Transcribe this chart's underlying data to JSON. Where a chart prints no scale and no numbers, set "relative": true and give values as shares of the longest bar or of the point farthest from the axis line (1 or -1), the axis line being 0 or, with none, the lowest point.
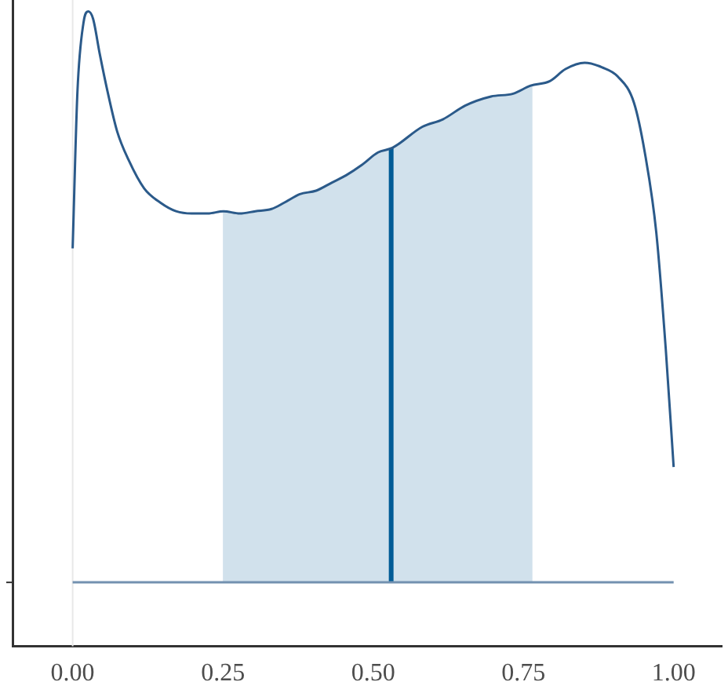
{
  "chart_data": {
    "type": "line",
    "relative": true,
    "x": [
      0.0,
      0.008,
      0.018,
      0.026,
      0.034,
      0.045,
      0.058,
      0.074,
      0.093,
      0.119,
      0.146,
      0.172,
      0.198,
      0.225,
      0.251,
      0.278,
      0.304,
      0.331,
      0.352,
      0.378,
      0.405,
      0.431,
      0.455,
      0.481,
      0.508,
      0.532,
      0.582,
      0.616,
      0.653,
      0.696,
      0.733,
      0.762,
      0.794,
      0.82,
      0.852,
      0.881,
      0.907,
      0.934,
      0.952,
      0.971,
      0.987,
      1.0
    ],
    "series": [
      {
        "color": "#2b5a8a",
        "values": [
          0.585,
          0.86,
          0.98,
          1.0,
          0.987,
          0.926,
          0.86,
          0.79,
          0.74,
          0.69,
          0.665,
          0.65,
          0.646,
          0.646,
          0.65,
          0.646,
          0.65,
          0.654,
          0.665,
          0.68,
          0.686,
          0.7,
          0.713,
          0.731,
          0.753,
          0.761,
          0.798,
          0.811,
          0.835,
          0.851,
          0.856,
          0.87,
          0.878,
          0.899,
          0.91,
          0.902,
          0.886,
          0.84,
          0.753,
          0.614,
          0.407,
          0.202
        ]
      }
    ],
    "xlim": [
      -0.1,
      1.08
    ],
    "xticks": [
      {
        "value": 0,
        "label": "0.00"
      },
      {
        "value": 0.25,
        "label": "0.25"
      },
      {
        "value": 0.5,
        "label": "0.50"
      },
      {
        "value": 0.75,
        "label": "0.75"
      },
      {
        "value": 1,
        "label": "1.00"
      }
    ],
    "bands": [
      {
        "axis": "x",
        "from": 0.25,
        "to": 0.765,
        "color": "#d1e1ec"
      }
    ],
    "ref_lines": [
      {
        "axis": "x",
        "value": 0,
        "color": "#e8e8e8"
      },
      {
        "axis": "x",
        "value": 0.53,
        "color": "#005b96"
      },
      {
        "axis": "y",
        "value": 0,
        "color": "#7391b0"
      }
    ],
    "tick_labels": "x",
    "grid": false,
    "legend": false
  }
}
